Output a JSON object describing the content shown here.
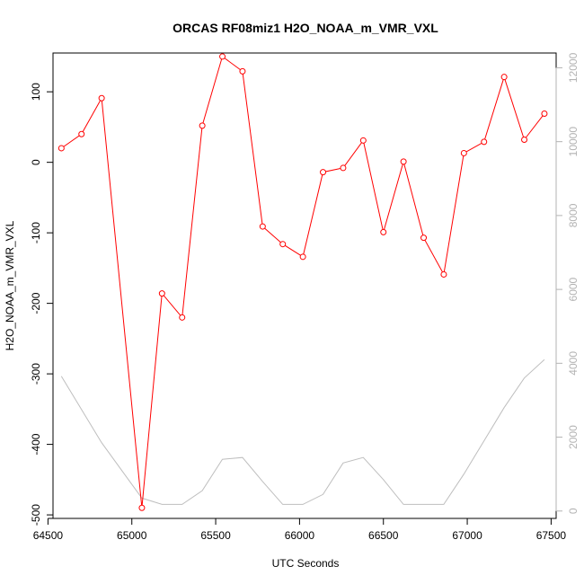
{
  "chart_data": {
    "type": "line",
    "title": "ORCAS RF08miz1 H2O_NOAA_m_VMR_VXL",
    "xlabel": "UTC Seconds",
    "ylabel": "H2O_NOAA_m_VMR_VXL",
    "xlim": [
      64530,
      67530
    ],
    "ylim": [
      -505,
      155
    ],
    "y2lim": [
      -200,
      12400
    ],
    "x_ticks": [
      64500,
      65000,
      65500,
      66000,
      66500,
      67000,
      67500
    ],
    "y_ticks": [
      -500,
      -400,
      -300,
      -200,
      -100,
      0,
      100
    ],
    "y2_ticks": [
      0,
      2000,
      4000,
      6000,
      8000,
      10000,
      12000
    ],
    "series": [
      {
        "axis": "left",
        "color": "#ff0000",
        "marker": "open-circle",
        "x": [
          64580,
          64700,
          64820,
          65060,
          65180,
          65300,
          65420,
          65540,
          65660,
          65780,
          65900,
          66020,
          66140,
          66260,
          66380,
          66500,
          66620,
          66740,
          66860,
          66980,
          67100,
          67220,
          67340,
          67460
        ],
        "y": [
          20,
          40,
          91,
          -490,
          -186,
          -220,
          52,
          150,
          129,
          -91,
          -116,
          -134,
          -14,
          -8,
          31,
          -99,
          1,
          -107,
          -159,
          13,
          29,
          121,
          32,
          69
        ]
      },
      {
        "axis": "right",
        "color": "#bebebe",
        "marker": "none",
        "x": [
          64580,
          64820,
          65060,
          65180,
          65300,
          65420,
          65540,
          65660,
          65780,
          65900,
          66020,
          66140,
          66260,
          66380,
          66500,
          66620,
          66740,
          66860,
          66980,
          67100,
          67220,
          67340,
          67460
        ],
        "y": [
          3650,
          1850,
          350,
          180,
          180,
          550,
          1400,
          1450,
          800,
          180,
          180,
          450,
          1300,
          1450,
          850,
          180,
          180,
          180,
          1000,
          1900,
          2800,
          3600,
          4100
        ]
      }
    ]
  }
}
